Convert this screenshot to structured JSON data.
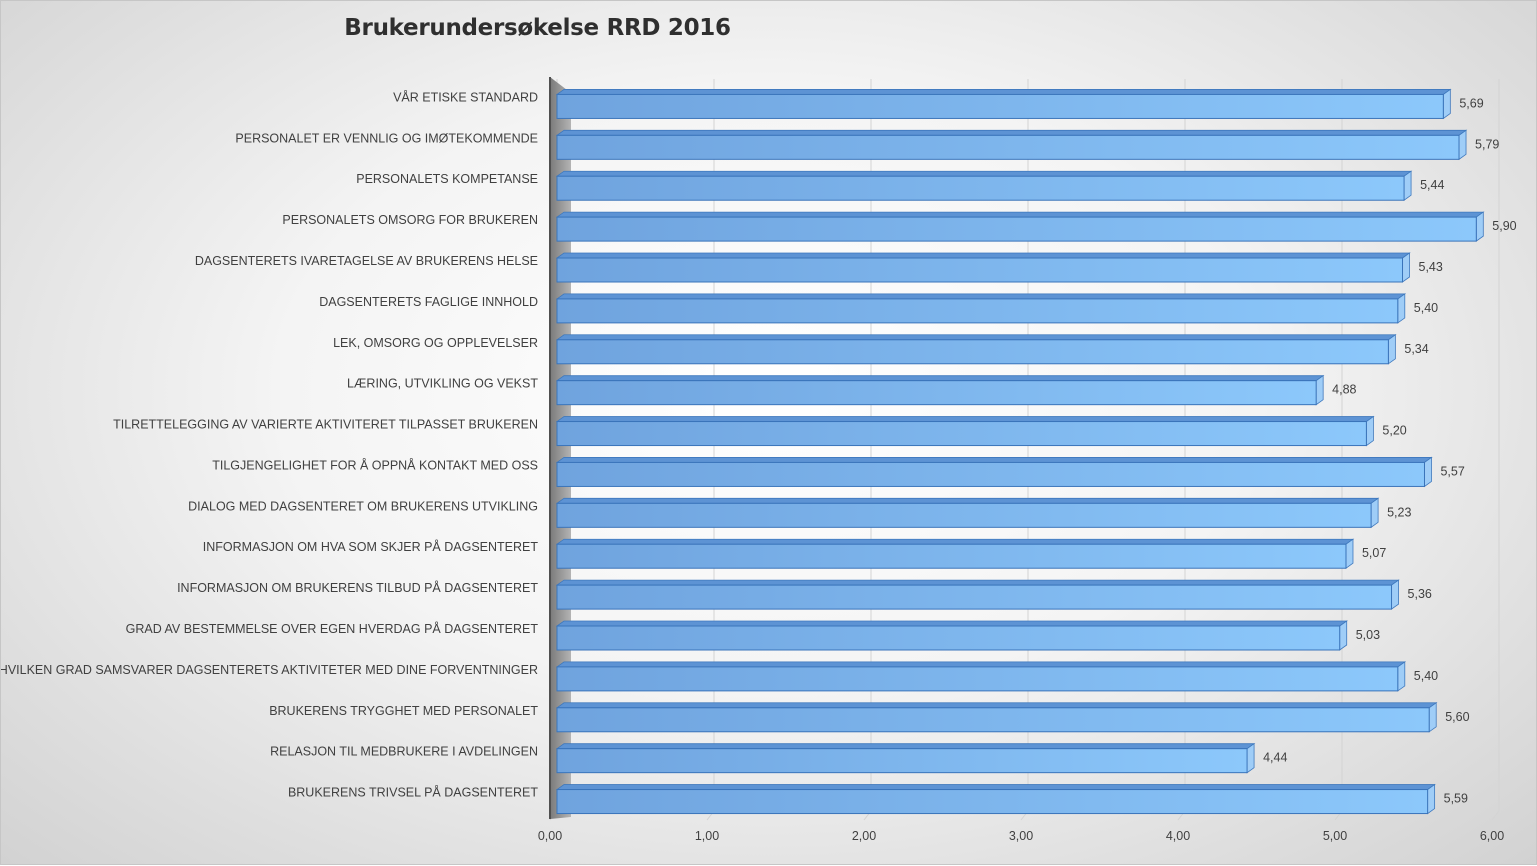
{
  "chart_data": {
    "type": "bar",
    "orientation": "horizontal",
    "title": "Brukerundersøkelse RRD 2016",
    "xlabel": "",
    "ylabel": "",
    "xlim": [
      0,
      6
    ],
    "x_ticks": [
      "0,00",
      "1,00",
      "2,00",
      "3,00",
      "4,00",
      "5,00",
      "6,00"
    ],
    "grid": true,
    "legend": "none",
    "bar_color": "#7aafe6",
    "categories": [
      "VÅR ETISKE STANDARD",
      "PERSONALET ER VENNLIG OG IMØTEKOMMENDE",
      "PERSONALETS KOMPETANSE",
      "PERSONALETS OMSORG FOR BRUKEREN",
      "DAGSENTERETS IVARETAGELSE AV BRUKERENS HELSE",
      "DAGSENTERETS FAGLIGE INNHOLD",
      "LEK, OMSORG OG OPPLEVELSER",
      "LÆRING, UTVIKLING OG VEKST",
      "TILRETTELEGGING AV VARIERTE AKTIVITERET TILPASSET BRUKEREN",
      "TILGJENGELIGHET FOR Å OPPNÅ KONTAKT MED OSS",
      "DIALOG MED DAGSENTERET OM BRUKERENS UTVIKLING",
      "INFORMASJON OM HVA SOM SKJER PÅ DAGSENTERET",
      "INFORMASJON OM BRUKERENS TILBUD PÅ DAGSENTERET",
      "GRAD AV BESTEMMELSE OVER EGEN HVERDAG PÅ DAGSENTERET",
      "I HVILKEN GRAD SAMSVARER DAGSENTERETS AKTIVITETER MED DINE FORVENTNINGER",
      "BRUKERENS TRYGGHET MED PERSONALET",
      "RELASJON TIL MEDBRUKERE I AVDELINGEN",
      "BRUKERENS TRIVSEL PÅ DAGSENTERET"
    ],
    "values": [
      5.69,
      5.79,
      5.44,
      5.9,
      5.43,
      5.4,
      5.34,
      4.88,
      5.2,
      5.57,
      5.23,
      5.07,
      5.36,
      5.03,
      5.4,
      5.6,
      4.44,
      5.59
    ],
    "value_labels": [
      "5,69",
      "5,79",
      "5,44",
      "5,90",
      "5,43",
      "5,40",
      "5,34",
      "4,88",
      "5,20",
      "5,57",
      "5,23",
      "5,07",
      "5,36",
      "5,03",
      "5,40",
      "5,60",
      "4,44",
      "5,59"
    ]
  }
}
